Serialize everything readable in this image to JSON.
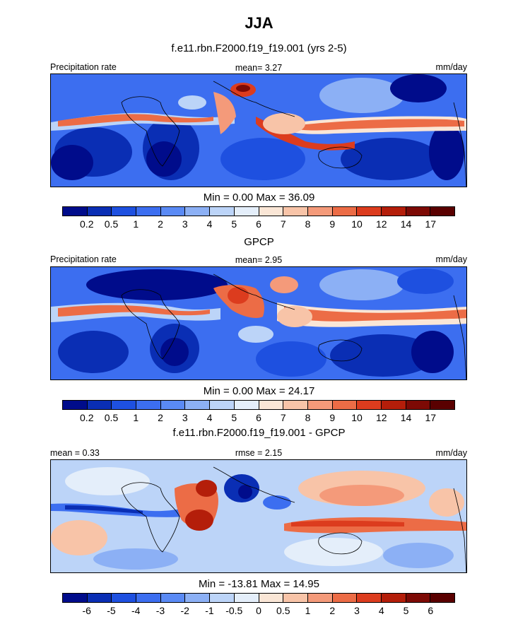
{
  "title": "JJA",
  "panels": [
    {
      "title": "f.e11.rbn.F2000.f19_f19.001 (yrs 2-5)",
      "left_label": "Precipitation rate",
      "center_label": "mean=   3.27",
      "right_label": "mm/day",
      "minmax": "Min =   0.00 Max =  36.09"
    },
    {
      "title": "GPCP",
      "left_label": "Precipitation rate",
      "center_label": "mean=   2.95",
      "right_label": "mm/day",
      "minmax": "Min =   0.00 Max =  24.17"
    },
    {
      "title": "f.e11.rbn.F2000.f19_f19.001 - GPCP",
      "left_label": "mean =   0.33",
      "center_label": "rmse =   2.15",
      "right_label": "mm/day",
      "minmax": "Min = -13.81 Max =  14.95"
    }
  ],
  "colorbars": {
    "precip": {
      "ticks": [
        "0.2",
        "0.5",
        "1",
        "2",
        "3",
        "4",
        "5",
        "6",
        "7",
        "8",
        "9",
        "10",
        "12",
        "14",
        "17"
      ],
      "colors": [
        "#000c8b",
        "#0a2eb4",
        "#1e50e0",
        "#3c6ef0",
        "#5a8af5",
        "#8cb0f5",
        "#bcd4f8",
        "#e4eefa",
        "#fae6d6",
        "#f8c4a8",
        "#f49a7a",
        "#ec6c46",
        "#dc3c1e",
        "#b41e0a",
        "#7d0a05",
        "#5a0000"
      ]
    },
    "diff": {
      "ticks": [
        "-6",
        "-5",
        "-4",
        "-3",
        "-2",
        "-1",
        "-0.5",
        "0",
        "0.5",
        "1",
        "2",
        "3",
        "4",
        "5",
        "6"
      ],
      "colors": [
        "#000c8b",
        "#0a2eb4",
        "#1e50e0",
        "#3c6ef0",
        "#5a8af5",
        "#8cb0f5",
        "#bcd4f8",
        "#e4eefa",
        "#fae6d6",
        "#f8c4a8",
        "#f49a7a",
        "#ec6c46",
        "#dc3c1e",
        "#b41e0a",
        "#7d0a05",
        "#5a0000"
      ]
    }
  },
  "chart_data": [
    {
      "type": "heatmap",
      "title": "f.e11.rbn.F2000.f19_f19.001 (yrs 2-5)",
      "variable": "Precipitation rate",
      "units": "mm/day",
      "season": "JJA",
      "mean": 3.27,
      "min": 0.0,
      "max": 36.09,
      "levels": [
        0.2,
        0.5,
        1,
        2,
        3,
        4,
        5,
        6,
        7,
        8,
        9,
        10,
        12,
        14,
        17
      ]
    },
    {
      "type": "heatmap",
      "title": "GPCP",
      "variable": "Precipitation rate",
      "units": "mm/day",
      "season": "JJA",
      "mean": 2.95,
      "min": 0.0,
      "max": 24.17,
      "levels": [
        0.2,
        0.5,
        1,
        2,
        3,
        4,
        5,
        6,
        7,
        8,
        9,
        10,
        12,
        14,
        17
      ]
    },
    {
      "type": "heatmap",
      "title": "f.e11.rbn.F2000.f19_f19.001 - GPCP",
      "units": "mm/day",
      "season": "JJA",
      "mean": 0.33,
      "rmse": 2.15,
      "min": -13.81,
      "max": 14.95,
      "levels": [
        -6,
        -5,
        -4,
        -3,
        -2,
        -1,
        -0.5,
        0,
        0.5,
        1,
        2,
        3,
        4,
        5,
        6
      ]
    }
  ]
}
